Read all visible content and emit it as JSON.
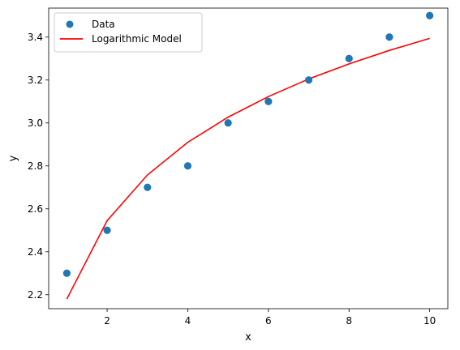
{
  "chart_data": {
    "type": "scatter",
    "xlabel": "x",
    "ylabel": "y",
    "xlim": [
      0.55,
      10.45
    ],
    "ylim": [
      2.135,
      3.535
    ],
    "xticks": [
      2,
      4,
      6,
      8,
      10
    ],
    "yticks": [
      2.2,
      2.4,
      2.6,
      2.8,
      3.0,
      3.2,
      3.4
    ],
    "xtick_labels": [
      "2",
      "4",
      "6",
      "8",
      "10"
    ],
    "ytick_labels": [
      "2.2",
      "2.4",
      "2.6",
      "2.8",
      "3.0",
      "3.2",
      "3.4"
    ],
    "grid": false,
    "legend_position": "top-left",
    "series": [
      {
        "name": "Data",
        "kind": "scatter",
        "color": "#1f77b4",
        "x": [
          1,
          2,
          3,
          4,
          5,
          6,
          7,
          8,
          9,
          10
        ],
        "y": [
          2.3,
          2.5,
          2.7,
          2.8,
          3.0,
          3.1,
          3.2,
          3.3,
          3.4,
          3.5
        ]
      },
      {
        "name": "Logarithmic Model",
        "kind": "line",
        "color": "#ff0000",
        "x": [
          1,
          2,
          3,
          4,
          5,
          6,
          7,
          8,
          9,
          10
        ],
        "y": [
          2.18,
          2.545,
          2.758,
          2.91,
          3.027,
          3.123,
          3.205,
          3.275,
          3.338,
          3.394
        ]
      }
    ]
  }
}
